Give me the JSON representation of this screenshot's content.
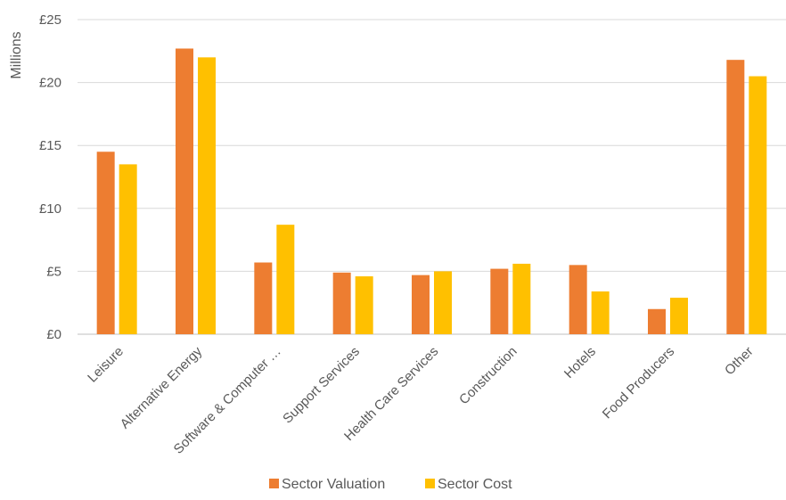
{
  "chart_data": {
    "type": "bar",
    "title": "",
    "xlabel": "",
    "ylabel": "",
    "y_unit_label": "Millions",
    "y_tick_prefix": "£",
    "ylim": [
      0,
      25
    ],
    "y_ticks": [
      0,
      5,
      10,
      15,
      20,
      25
    ],
    "y_tick_labels": [
      "£0",
      "£5",
      "£10",
      "£15",
      "£20",
      "£25"
    ],
    "grid": true,
    "legend_position": "bottom",
    "categories": [
      "Leisure",
      "Alternative Energy",
      "Software & Computer …",
      "Support Services",
      "Health Care Services",
      "Construction",
      "Hotels",
      "Food Producers",
      "Other"
    ],
    "series": [
      {
        "name": "Sector Valuation",
        "color": "#ED7D31",
        "values": [
          14.5,
          22.7,
          5.7,
          4.9,
          4.7,
          5.2,
          5.5,
          2.0,
          21.8
        ]
      },
      {
        "name": "Sector Cost",
        "color": "#FFC000",
        "values": [
          13.5,
          22.0,
          8.7,
          4.6,
          5.0,
          5.6,
          3.4,
          2.9,
          20.5
        ]
      }
    ]
  }
}
